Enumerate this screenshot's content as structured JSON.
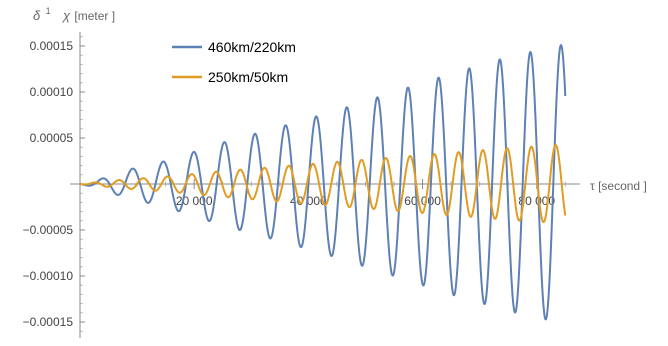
{
  "chart_data": {
    "type": "line",
    "xlabel": "τ  [second ]",
    "ylabel": "[meter ]",
    "ylabel_symbol_delta": "δ",
    "ylabel_superscript": "1",
    "ylabel_symbol_chi": "χ",
    "xlim": [
      0,
      86000
    ],
    "ylim": [
      -0.000165,
      0.00017
    ],
    "x_ticks": [
      20000,
      40000,
      60000,
      80000
    ],
    "x_tick_labels": [
      "20 000",
      "40 000",
      "60 000",
      "80 000"
    ],
    "y_ticks": [
      -0.00015,
      -0.0001,
      -5e-05,
      5e-05,
      0.0001,
      0.00015
    ],
    "y_tick_labels": [
      "−0.00015",
      "−0.00010",
      "−0.00005",
      "0.00005",
      "0.00010",
      "0.00015"
    ],
    "grid": false,
    "legend_position": "top-left",
    "series": [
      {
        "name": "460km/220km",
        "color": "#5e81b5",
        "x_start": 0,
        "x_end": 85000,
        "period_s": 5360,
        "phase_x": 2500,
        "envelope_x": [
          0,
          3000,
          8000,
          15000,
          25000,
          35000,
          45000,
          55000,
          65000,
          75000,
          85000
        ],
        "envelope_amp": [
          0,
          4e-06,
          1.5e-05,
          2.5e-05,
          4.5e-05,
          6.2e-05,
          8e-05,
          0.0001,
          0.00012,
          0.000138,
          0.000152
        ]
      },
      {
        "name": "250km/50km",
        "color": "#e19c24",
        "x_start": 0,
        "x_end": 85000,
        "period_s": 4250,
        "phase_x": 1500,
        "envelope_x": [
          0,
          3000,
          8000,
          15000,
          25000,
          35000,
          45000,
          55000,
          65000,
          75000,
          85000
        ],
        "envelope_amp": [
          0,
          2e-06,
          5e-06,
          8e-06,
          1.4e-05,
          1.9e-05,
          2.4e-05,
          2.9e-05,
          3.4e-05,
          3.9e-05,
          4.3e-05
        ]
      }
    ]
  }
}
